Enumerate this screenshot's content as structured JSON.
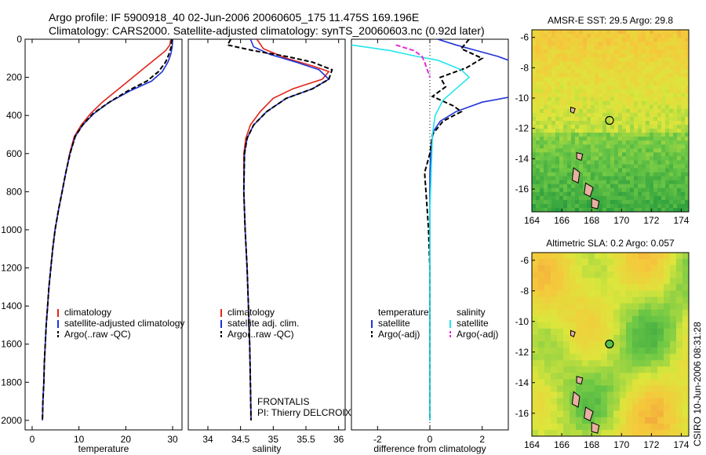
{
  "header": {
    "line1": "Argo profile: IF 5900918_40 02-Jun-2006 20060605_175 11.475S 169.196E",
    "line2": "Climatology: CARS2000. Satellite-adjusted climatology: synTS_20060603.nc (0.92d later)"
  },
  "side_label": "CSIRO 10-Jun-2006 08:31:28",
  "colors": {
    "climatology": "#e0241b",
    "satellite": "#1f33d6",
    "argo": "#000000",
    "sal_satellite": "#22e6ec",
    "sal_argo": "#e62bd3",
    "land": "#e6b0a0"
  },
  "chart_data": [
    {
      "id": "temperature",
      "type": "line",
      "xlabel": "temperature",
      "ylabel": "",
      "xlim": [
        -1.5,
        32
      ],
      "ylim": [
        0,
        2050
      ],
      "y_inverted": true,
      "xticks": [
        0,
        10,
        20,
        30
      ],
      "yticks": [
        0,
        200,
        400,
        600,
        800,
        1000,
        1200,
        1400,
        1600,
        1800,
        2000
      ],
      "legend": {
        "placement": "bottom-right",
        "entries": [
          "climatology",
          "satellite-adjusted climatology",
          "Argo(..raw -QC)"
        ]
      },
      "series": [
        {
          "name": "climatology",
          "style": "solid",
          "color": "climatology",
          "points": [
            [
              29.6,
              0
            ],
            [
              29.4,
              30
            ],
            [
              28.5,
              60
            ],
            [
              26.5,
              100
            ],
            [
              24.0,
              150
            ],
            [
              21.5,
              200
            ],
            [
              18.5,
              260
            ],
            [
              15.0,
              330
            ],
            [
              12.5,
              390
            ],
            [
              10.5,
              450
            ],
            [
              9.0,
              510
            ],
            [
              8.0,
              600
            ],
            [
              7.2,
              700
            ],
            [
              6.4,
              800
            ],
            [
              5.6,
              900
            ],
            [
              4.9,
              1000
            ],
            [
              4.4,
              1100
            ],
            [
              4.0,
              1200
            ],
            [
              3.6,
              1300
            ],
            [
              3.3,
              1400
            ],
            [
              3.0,
              1500
            ],
            [
              2.8,
              1600
            ],
            [
              2.6,
              1700
            ],
            [
              2.5,
              1800
            ],
            [
              2.3,
              1900
            ],
            [
              2.2,
              2000
            ]
          ]
        },
        {
          "name": "satellite-adjusted climatology",
          "style": "solid",
          "color": "satellite",
          "points": [
            [
              30.0,
              0
            ],
            [
              29.9,
              40
            ],
            [
              29.6,
              80
            ],
            [
              29.0,
              120
            ],
            [
              27.8,
              170
            ],
            [
              25.5,
              220
            ],
            [
              21.0,
              270
            ],
            [
              16.5,
              330
            ],
            [
              13.2,
              390
            ],
            [
              10.8,
              450
            ],
            [
              9.2,
              510
            ],
            [
              8.1,
              600
            ],
            [
              7.2,
              700
            ],
            [
              6.4,
              800
            ],
            [
              5.6,
              900
            ],
            [
              4.9,
              1000
            ],
            [
              4.4,
              1100
            ],
            [
              4.0,
              1200
            ],
            [
              3.6,
              1300
            ],
            [
              3.3,
              1400
            ],
            [
              3.0,
              1500
            ],
            [
              2.8,
              1600
            ],
            [
              2.6,
              1700
            ],
            [
              2.5,
              1800
            ],
            [
              2.3,
              1900
            ],
            [
              2.2,
              2000
            ]
          ]
        },
        {
          "name": "Argo(..raw -QC)",
          "style": "dashed",
          "color": "argo",
          "points": [
            [
              29.8,
              0
            ],
            [
              29.7,
              40
            ],
            [
              29.2,
              80
            ],
            [
              28.5,
              120
            ],
            [
              27.0,
              170
            ],
            [
              24.5,
              220
            ],
            [
              20.5,
              270
            ],
            [
              16.5,
              330
            ],
            [
              13.0,
              390
            ],
            [
              10.8,
              450
            ],
            [
              9.2,
              510
            ],
            [
              8.1,
              600
            ],
            [
              7.2,
              700
            ],
            [
              6.4,
              800
            ],
            [
              5.6,
              900
            ],
            [
              4.9,
              1000
            ],
            [
              4.4,
              1100
            ],
            [
              4.0,
              1200
            ],
            [
              3.6,
              1300
            ],
            [
              3.3,
              1400
            ],
            [
              3.0,
              1500
            ],
            [
              2.8,
              1600
            ],
            [
              2.6,
              1700
            ],
            [
              2.5,
              1800
            ],
            [
              2.3,
              1900
            ],
            [
              2.2,
              2000
            ]
          ]
        }
      ]
    },
    {
      "id": "salinity",
      "type": "line",
      "xlabel": "salinity",
      "ylabel": "",
      "xlim": [
        33.7,
        36.1
      ],
      "ylim": [
        0,
        2050
      ],
      "y_inverted": true,
      "xticks": [
        34,
        34.5,
        35,
        35.5,
        36
      ],
      "yticks": [],
      "legend": {
        "placement": "bottom-right",
        "entries": [
          "climatology",
          "satellite adj. clim.",
          "Argo(..raw -QC)"
        ]
      },
      "annotation": {
        "line1": "FRONTALIS",
        "line2": "PI: Thierry DELCROIX"
      },
      "series": [
        {
          "name": "climatology",
          "style": "solid",
          "color": "climatology",
          "points": [
            [
              34.75,
              0
            ],
            [
              34.85,
              50
            ],
            [
              35.2,
              100
            ],
            [
              35.6,
              140
            ],
            [
              35.85,
              170
            ],
            [
              35.75,
              210
            ],
            [
              35.3,
              260
            ],
            [
              35.0,
              310
            ],
            [
              34.8,
              380
            ],
            [
              34.65,
              450
            ],
            [
              34.58,
              520
            ],
            [
              34.55,
              600
            ],
            [
              34.55,
              800
            ],
            [
              34.57,
              1000
            ],
            [
              34.6,
              1200
            ],
            [
              34.62,
              1400
            ],
            [
              34.64,
              1600
            ],
            [
              34.65,
              1800
            ],
            [
              34.66,
              2000
            ]
          ]
        },
        {
          "name": "satellite adj. clim.",
          "style": "solid",
          "color": "satellite",
          "points": [
            [
              34.65,
              0
            ],
            [
              34.7,
              40
            ],
            [
              34.95,
              80
            ],
            [
              35.35,
              120
            ],
            [
              35.7,
              160
            ],
            [
              35.85,
              210
            ],
            [
              35.6,
              260
            ],
            [
              35.2,
              310
            ],
            [
              34.9,
              380
            ],
            [
              34.7,
              450
            ],
            [
              34.6,
              520
            ],
            [
              34.56,
              600
            ],
            [
              34.55,
              800
            ],
            [
              34.57,
              1000
            ],
            [
              34.6,
              1200
            ],
            [
              34.62,
              1400
            ],
            [
              34.64,
              1600
            ],
            [
              34.65,
              1800
            ],
            [
              34.66,
              2000
            ]
          ]
        },
        {
          "name": "Argo(..raw -QC)",
          "style": "dashed",
          "color": "argo",
          "points": [
            [
              34.35,
              0
            ],
            [
              34.3,
              30
            ],
            [
              34.7,
              60
            ],
            [
              35.2,
              90
            ],
            [
              35.6,
              120
            ],
            [
              35.9,
              160
            ],
            [
              35.85,
              210
            ],
            [
              35.6,
              260
            ],
            [
              35.2,
              310
            ],
            [
              34.9,
              380
            ],
            [
              34.7,
              450
            ],
            [
              34.6,
              520
            ],
            [
              34.56,
              600
            ],
            [
              34.55,
              800
            ],
            [
              34.57,
              1000
            ],
            [
              34.6,
              1200
            ],
            [
              34.62,
              1400
            ],
            [
              34.64,
              1600
            ],
            [
              34.65,
              1800
            ],
            [
              34.66,
              2000
            ]
          ]
        }
      ]
    },
    {
      "id": "difference",
      "type": "line",
      "xlabel": "difference from climatology",
      "ylabel": "",
      "xlim": [
        -3,
        3
      ],
      "ylim": [
        0,
        2050
      ],
      "y_inverted": true,
      "xticks": [
        -2,
        0,
        2
      ],
      "yticks": [],
      "legend": {
        "placement": "bottom",
        "col_titles": [
          "temperature",
          "salinity"
        ],
        "entries": [
          "satellite",
          "Argo(-adj)",
          "satellite",
          "Argo(-adj)"
        ]
      },
      "series": [
        {
          "name": "satellite",
          "group": "temperature",
          "style": "solid",
          "color": "satellite",
          "points": [
            [
              0.3,
              0
            ],
            [
              1.0,
              30
            ],
            [
              1.8,
              60
            ],
            [
              2.6,
              90
            ],
            [
              3.2,
              120
            ]
          ],
          "points_b": [
            [
              3.2,
              300
            ],
            [
              2.0,
              330
            ],
            [
              1.0,
              380
            ],
            [
              0.4,
              430
            ],
            [
              0.15,
              480
            ],
            [
              0.05,
              550
            ],
            [
              0.0,
              700
            ],
            [
              0.0,
              900
            ],
            [
              0.0,
              1200
            ],
            [
              0.0,
              2000
            ]
          ]
        },
        {
          "name": "Argo(-adj)",
          "group": "temperature",
          "style": "dashed",
          "color": "argo",
          "points": [
            [
              1.5,
              0
            ],
            [
              1.2,
              50
            ],
            [
              2.0,
              100
            ],
            [
              1.4,
              150
            ],
            [
              0.4,
              200
            ],
            [
              0.6,
              250
            ],
            [
              0.1,
              300
            ],
            [
              0.9,
              350
            ],
            [
              1.2,
              380
            ],
            [
              0.5,
              430
            ],
            [
              0.1,
              500
            ],
            [
              0.0,
              600
            ],
            [
              -0.2,
              700
            ],
            [
              -0.15,
              800
            ],
            [
              -0.1,
              900
            ],
            [
              -0.05,
              1000
            ],
            [
              0.0,
              1200
            ],
            [
              0.0,
              1600
            ],
            [
              0.0,
              2000
            ]
          ]
        },
        {
          "name": "satellite",
          "group": "salinity",
          "style": "solid",
          "color": "sal_satellite",
          "points": [
            [
              -3,
              30
            ],
            [
              -1.5,
              60
            ],
            [
              -0.5,
              90
            ],
            [
              0.3,
              110
            ],
            [
              1.2,
              160
            ],
            [
              1.5,
              200
            ],
            [
              1.0,
              260
            ],
            [
              0.5,
              320
            ],
            [
              0.2,
              400
            ],
            [
              0.1,
              500
            ],
            [
              0.05,
              700
            ],
            [
              0.0,
              900
            ],
            [
              0.0,
              2000
            ]
          ]
        },
        {
          "name": "Argo(-adj)",
          "group": "salinity",
          "style": "dashed",
          "color": "sal_argo",
          "points": [
            [
              -1.3,
              30
            ],
            [
              -0.6,
              60
            ],
            [
              -0.3,
              90
            ],
            [
              -0.2,
              120
            ],
            [
              -0.1,
              160
            ],
            [
              0.0,
              200
            ]
          ]
        }
      ]
    },
    {
      "id": "sst_map",
      "type": "heatmap",
      "title": "AMSR-E SST: 29.5 Argo: 29.8",
      "xlim": [
        164,
        174.5
      ],
      "ylim": [
        -17.5,
        -5.5
      ],
      "xticks": [
        164,
        166,
        168,
        170,
        172,
        174
      ],
      "yticks": [
        -6,
        -8,
        -10,
        -12,
        -14,
        -16
      ],
      "marker": {
        "lon": 169.196,
        "lat": -11.475
      }
    },
    {
      "id": "sla_map",
      "type": "heatmap",
      "title": "Altimetric SLA: 0.2 Argo: 0.057",
      "xlim": [
        164,
        174.5
      ],
      "ylim": [
        -17.5,
        -5.5
      ],
      "xticks": [
        164,
        166,
        168,
        170,
        172,
        174
      ],
      "yticks": [
        -6,
        -8,
        -10,
        -12,
        -14,
        -16
      ],
      "marker": {
        "lon": 169.196,
        "lat": -11.475
      }
    }
  ]
}
